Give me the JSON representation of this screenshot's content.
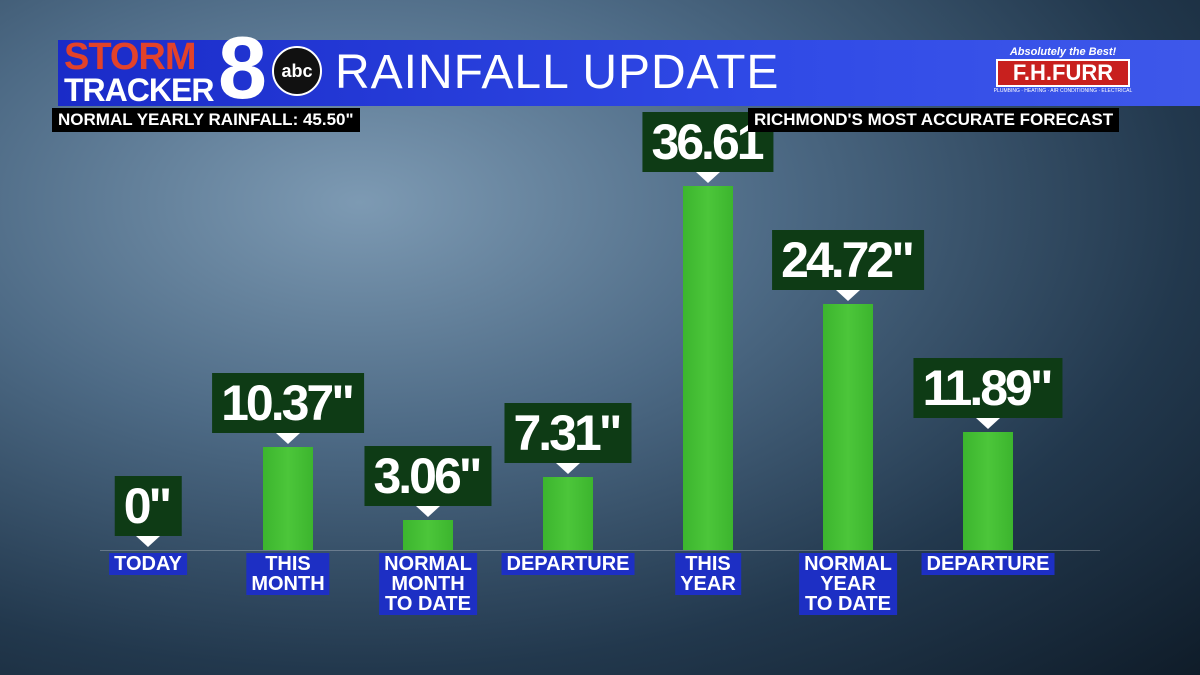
{
  "chart_data": {
    "type": "bar",
    "title": "RAINFALL UPDATE",
    "brand": {
      "storm": "STORM",
      "tracker": "TRACKER",
      "number": "8",
      "network": "abc"
    },
    "sponsor": {
      "tagline": "Absolutely the Best!",
      "name": "F.H.FURR",
      "services": "PLUMBING · HEATING · AIR CONDITIONING · ELECTRICAL"
    },
    "subtitle": "NORMAL YEARLY RAINFALL: 45.50\"",
    "slogan": "RICHMOND'S MOST ACCURATE FORECAST",
    "categories": [
      "TODAY",
      "THIS\nMONTH",
      "NORMAL\nMONTH\nTO DATE",
      "DEPARTURE",
      "THIS\nYEAR",
      "NORMAL\nYEAR\nTO DATE",
      "DEPARTURE"
    ],
    "values": [
      0,
      10.37,
      3.06,
      7.31,
      36.61,
      24.72,
      11.89
    ],
    "value_labels": [
      "0\"",
      "10.37\"",
      "3.06\"",
      "7.31\"",
      "36.61",
      "24.72\"",
      "11.89\""
    ],
    "color": "#3cb52e"
  }
}
